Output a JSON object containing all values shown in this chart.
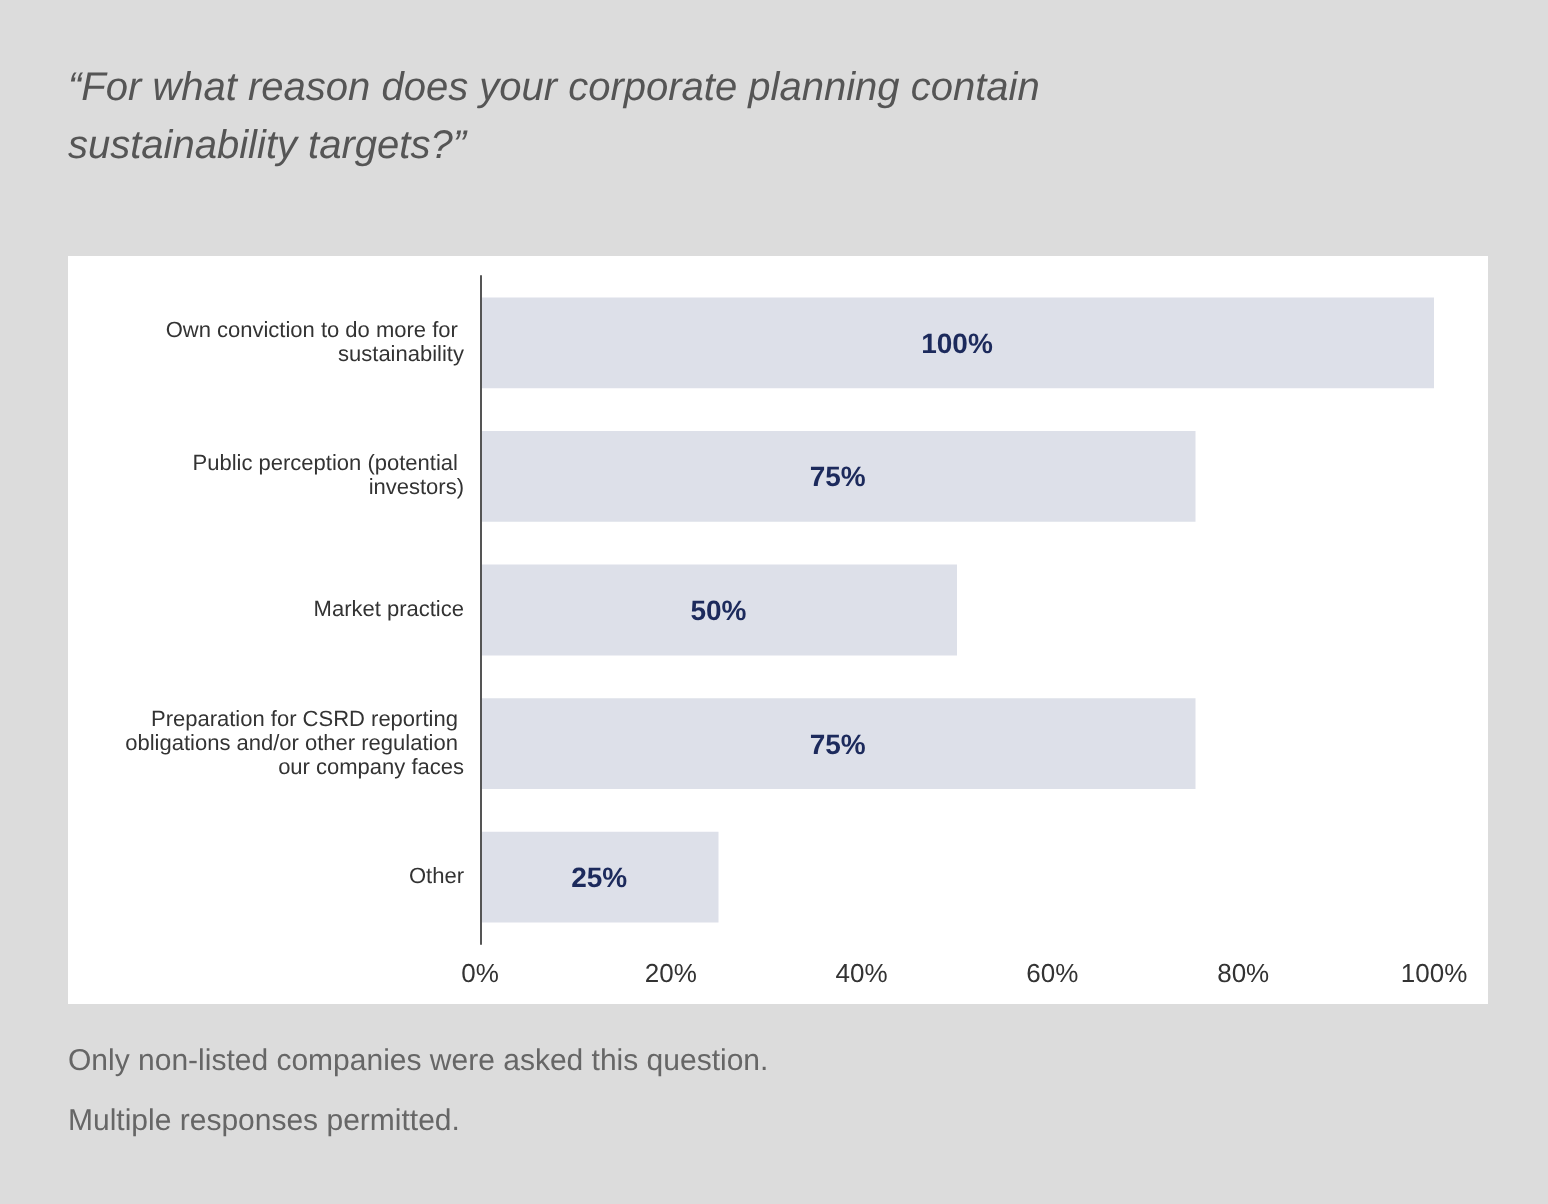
{
  "chart_data": {
    "type": "bar",
    "orientation": "horizontal",
    "title": "“For what reason does your corporate planning contain sustainability targets?”",
    "categories": [
      "Own conviction to do more for sustainability",
      "Public perception (potential investors)",
      "Market practice",
      "Preparation for CSRD reporting obligations and/or other regulation our company faces",
      "Other"
    ],
    "values": [
      100,
      75,
      50,
      75,
      25
    ],
    "value_labels": [
      "100%",
      "75%",
      "50%",
      "75%",
      "25%"
    ],
    "color": "#dde0e9",
    "xlim": [
      0,
      100
    ],
    "xticks": [
      {
        "value": 0,
        "label": "0%"
      },
      {
        "value": 20,
        "label": "20%"
      },
      {
        "value": 40,
        "label": "40%"
      },
      {
        "value": 60,
        "label": "60%"
      },
      {
        "value": 80,
        "label": "80%"
      },
      {
        "value": 100,
        "label": "100%"
      }
    ],
    "grid": false,
    "annotations": [
      "Only non-listed companies were asked this question.",
      "Multiple responses permitted."
    ]
  }
}
